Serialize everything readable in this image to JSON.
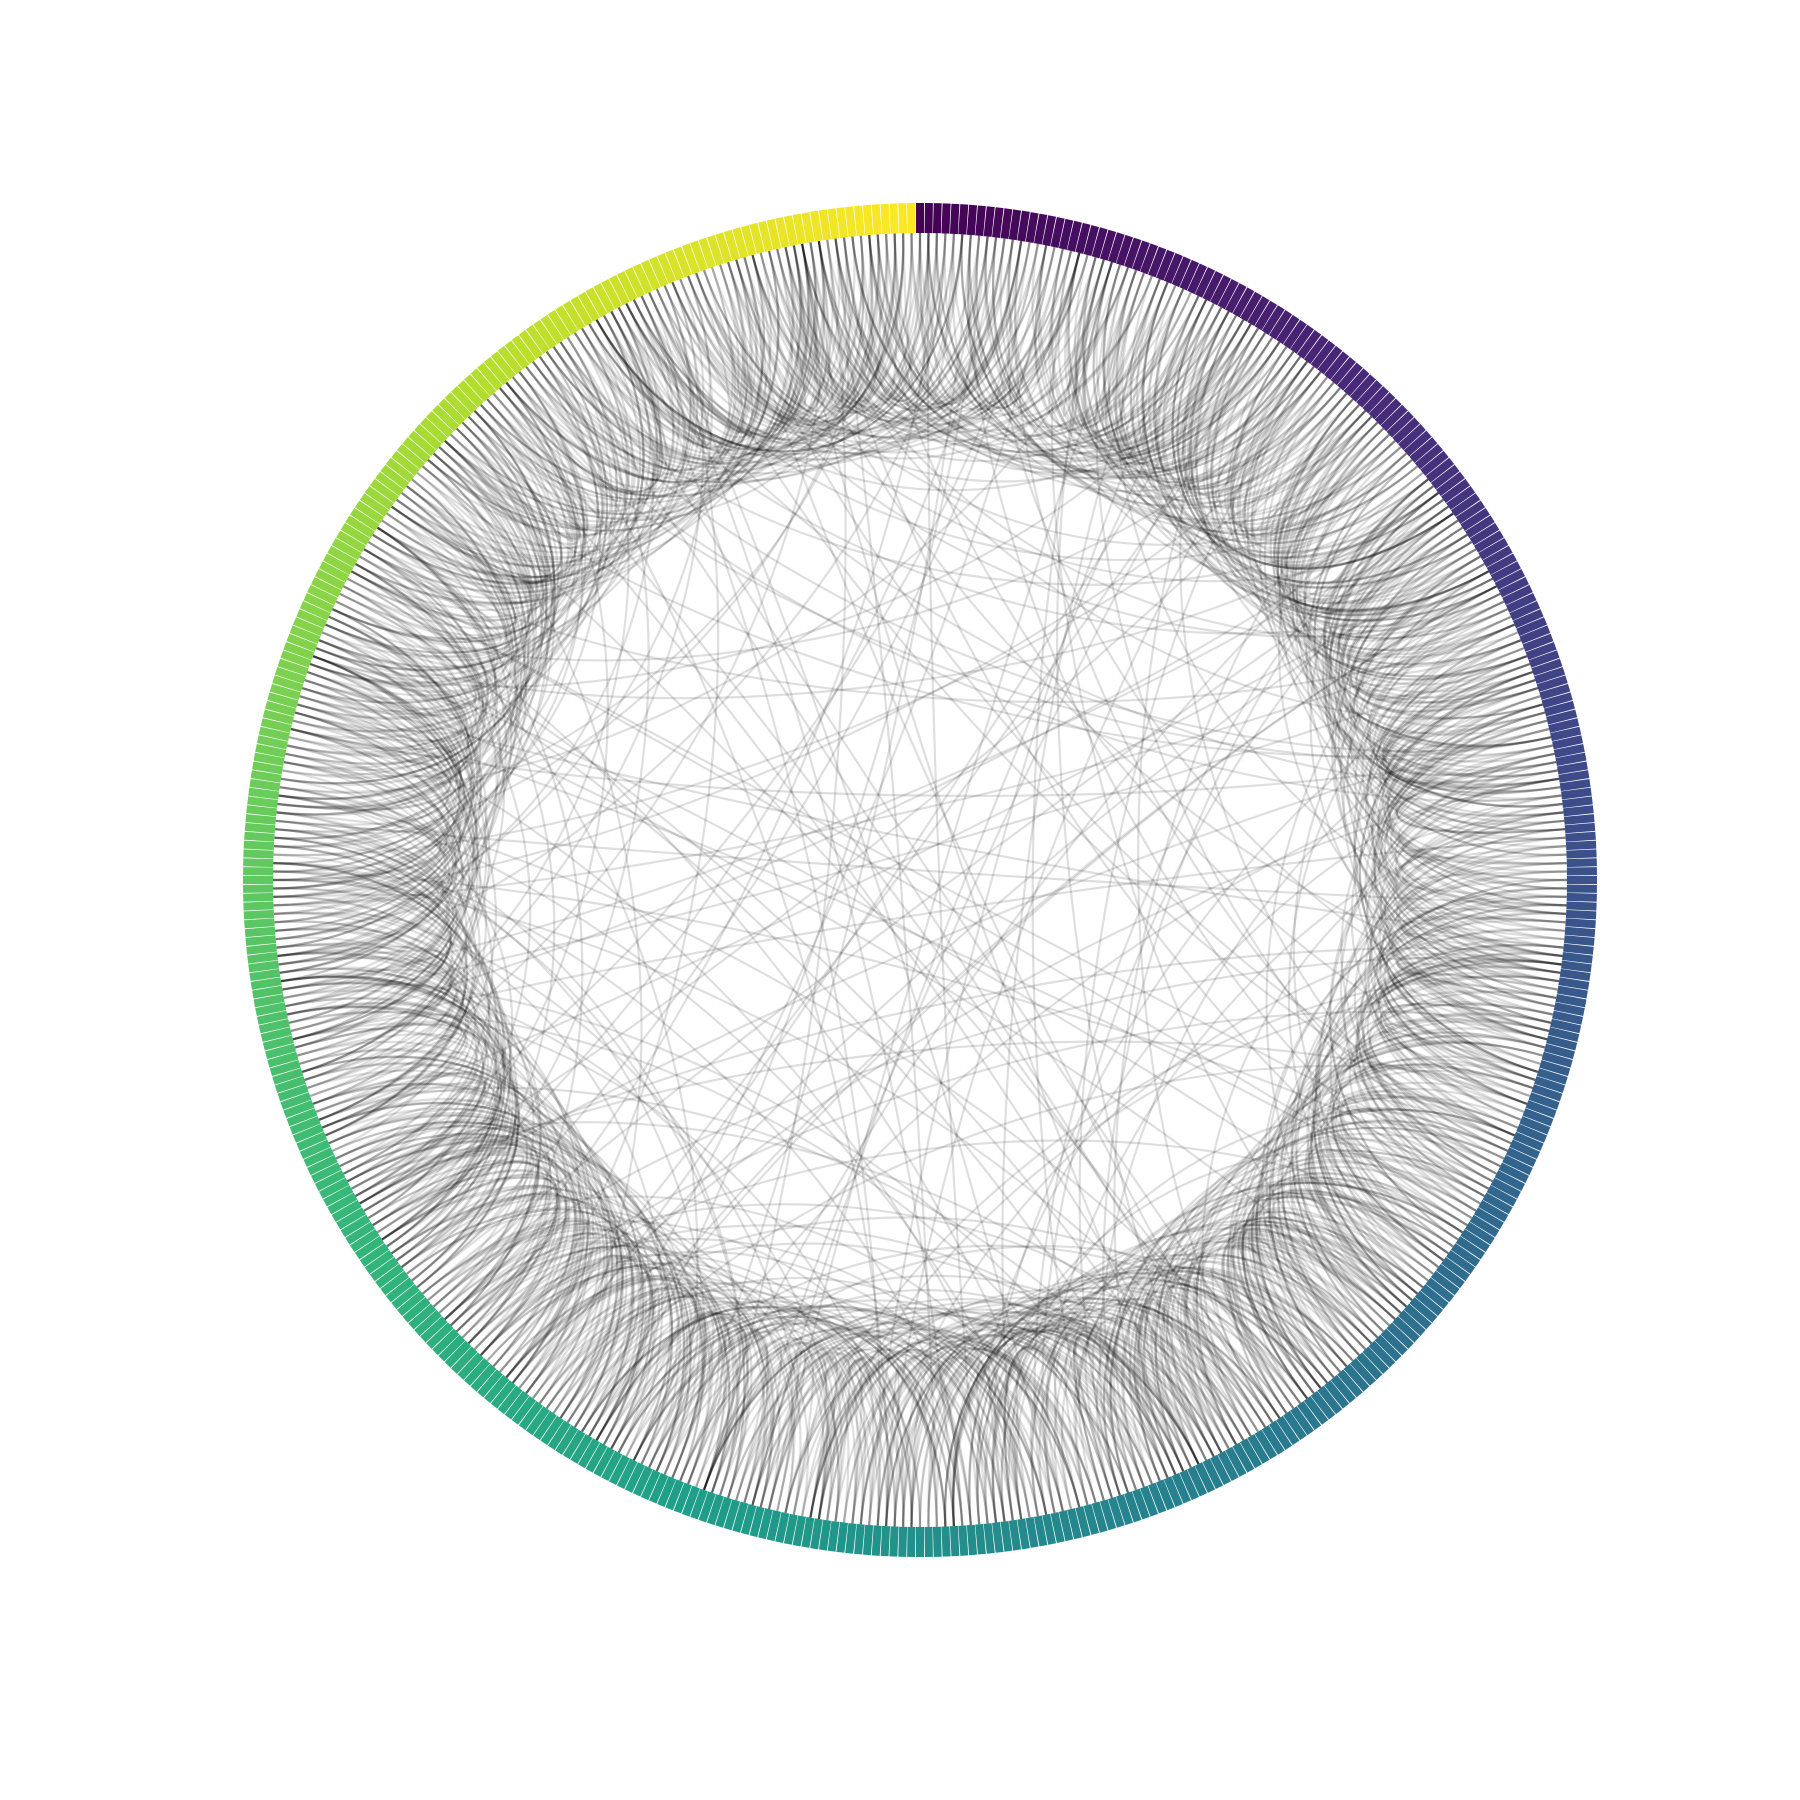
{
  "diagram": {
    "type": "circular-chord-diagram",
    "node_count": 480,
    "node_start": "top",
    "node_direction": "clockwise",
    "colormap": "viridis",
    "node_marker": "radial-tick",
    "edge_color": "#000000",
    "edge_style": "curved-bundled",
    "edge_opacity": "low",
    "background": "#ffffff"
  }
}
